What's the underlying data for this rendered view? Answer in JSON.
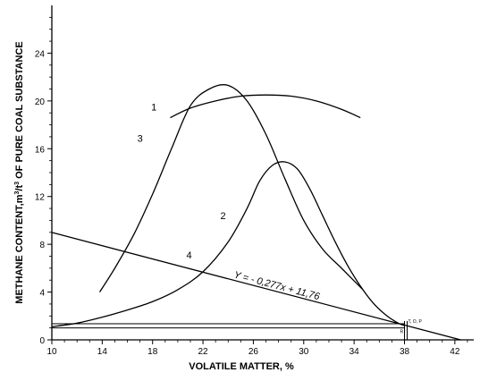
{
  "chart_data": {
    "type": "line",
    "title": "",
    "xlabel": "VOLATILE MATTER, %",
    "ylabel": "METHANE CONTENT,m³/t³ OF PURE COAL SUBSTANCE",
    "ylabel_parts": {
      "before": "METHANE CONTENT,m",
      "sup1": "3",
      "mid": "/t",
      "sup2": "3",
      "after": " OF PURE COAL SUBSTANCE"
    },
    "xlim": [
      10,
      43.5
    ],
    "ylim": [
      0,
      28
    ],
    "x_ticks": [
      "10",
      "14",
      "18",
      "22",
      "26",
      "30",
      "34",
      "38",
      "42"
    ],
    "y_ticks": [
      "0",
      "4",
      "8",
      "12",
      "16",
      "20",
      "24"
    ],
    "grid": false,
    "series": [
      {
        "name": "1",
        "x": [
          19.4,
          21,
          23,
          25,
          27,
          29,
          31,
          33,
          34.5
        ],
        "y": [
          18.6,
          19.4,
          20.0,
          20.4,
          20.5,
          20.4,
          20.0,
          19.3,
          18.6
        ]
      },
      {
        "name": "2",
        "x": [
          10,
          12,
          14,
          16,
          18,
          20,
          22,
          24,
          25.5,
          26.5,
          27.5,
          28.5,
          29.5,
          30.5,
          31.5,
          32.5,
          33.5,
          34.5,
          35.5,
          36.5,
          37.5,
          38
        ],
        "y": [
          1.1,
          1.4,
          1.9,
          2.5,
          3.2,
          4.2,
          5.7,
          8.2,
          11.0,
          13.3,
          14.6,
          14.9,
          14.3,
          12.6,
          10.4,
          8.2,
          6.2,
          4.5,
          3.1,
          2.1,
          1.4,
          1.2
        ]
      },
      {
        "name": "3",
        "x": [
          13.8,
          15,
          16.5,
          18,
          19.5,
          21,
          22.5,
          24,
          25.5,
          27,
          28.5,
          30,
          31.5,
          33,
          34.7
        ],
        "y": [
          4.0,
          6.0,
          8.8,
          12.2,
          16.0,
          19.6,
          21.0,
          21.3,
          20.0,
          17.2,
          13.5,
          10.0,
          7.6,
          6.0,
          4.2
        ]
      }
    ],
    "regression_line": {
      "name": "4",
      "equation": "Y = - 0,277x + 11,76",
      "slope": -0.277,
      "intercept": 11.76,
      "x_range": [
        10,
        42.5
      ]
    },
    "annotation_band": {
      "x_range": [
        10,
        38
      ],
      "y_range": [
        1.0,
        1.35
      ]
    },
    "annotation_tiny_labels": [
      "T, O, P",
      "R"
    ]
  }
}
